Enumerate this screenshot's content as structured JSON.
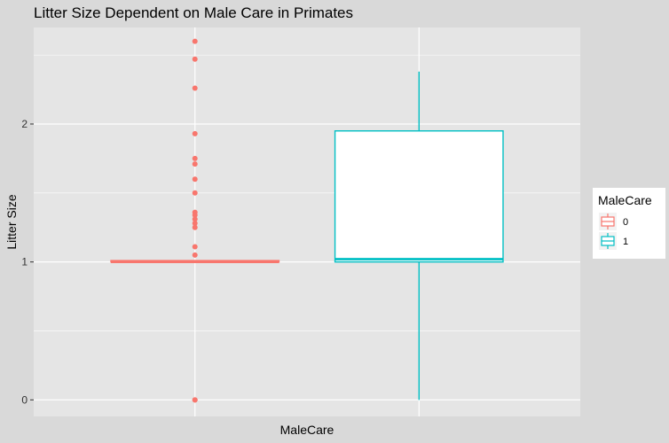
{
  "chart_data": {
    "type": "box",
    "title": "Litter Size Dependent on Male Care in Primates",
    "xlabel": "MaleCare",
    "ylabel": "Litter Size",
    "ylim": [
      -0.12,
      2.7
    ],
    "yticks": [
      0,
      1,
      2
    ],
    "ytick_labels": [
      "0",
      "1",
      "2"
    ],
    "legend": {
      "title": "MaleCare",
      "position": "right",
      "entries": [
        "0",
        "1"
      ]
    },
    "grid": true,
    "colors": {
      "0": "#F8766D",
      "1": "#00BFC4",
      "panel": "#e5e5e5",
      "plot_bg": "#d9d9d9",
      "grid": "#ffffff"
    },
    "series": [
      {
        "name": "0",
        "color": "#F8766D",
        "box": {
          "q1": 1.0,
          "median": 1.0,
          "q3": 1.01,
          "whisker_low": 1.0,
          "whisker_high": 1.01
        },
        "outliers": [
          2.6,
          2.47,
          2.26,
          1.93,
          1.75,
          1.71,
          1.6,
          1.5,
          1.36,
          1.34,
          1.31,
          1.28,
          1.25,
          1.11,
          1.05,
          0.0,
          0.0
        ]
      },
      {
        "name": "1",
        "color": "#00BFC4",
        "box": {
          "q1": 1.0,
          "median": 1.02,
          "q3": 1.95,
          "whisker_low": 0.0,
          "whisker_high": 2.38
        },
        "outliers": []
      }
    ]
  }
}
